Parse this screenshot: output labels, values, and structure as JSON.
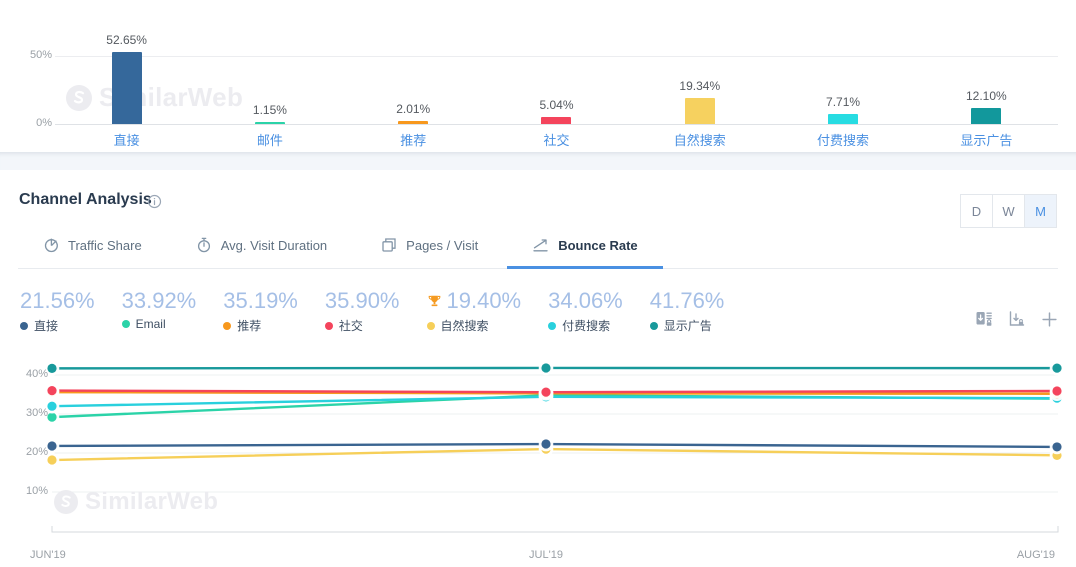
{
  "brand": {
    "watermark": "SimilarWeb"
  },
  "chart_data": [
    {
      "type": "bar",
      "title": "Traffic Share by Channel",
      "categories": [
        "直接",
        "邮件",
        "推荐",
        "社交",
        "自然搜索",
        "付费搜索",
        "显示广告"
      ],
      "keys": [
        "direct",
        "email",
        "referrals",
        "social",
        "organic-search",
        "paid-search",
        "display-ads"
      ],
      "values": [
        52.65,
        1.15,
        2.01,
        5.04,
        19.34,
        7.71,
        12.1
      ],
      "value_labels": [
        "52.65%",
        "1.15%",
        "2.01%",
        "5.04%",
        "19.34%",
        "7.71%",
        "12.10%"
      ],
      "colors": [
        "#35689b",
        "#2bd3a8",
        "#f7981d",
        "#f4445c",
        "#f6d15f",
        "#27dce2",
        "#12989c"
      ],
      "yticks": [
        {
          "label": "50%",
          "value": 50
        },
        {
          "label": "0%",
          "value": 0
        }
      ],
      "ylim": [
        0,
        50
      ],
      "grid": "single-line-at-50"
    },
    {
      "type": "line",
      "title": "Bounce Rate",
      "x": [
        "JUN'19",
        "JUL'19",
        "AUG'19"
      ],
      "yticks": [
        {
          "label": "40%",
          "value": 40
        },
        {
          "label": "30%",
          "value": 30
        },
        {
          "label": "20%",
          "value": 20
        },
        {
          "label": "10%",
          "value": 10
        }
      ],
      "ylim": [
        8,
        44
      ],
      "grid": "horizontal",
      "legend_position": "top",
      "series": [
        {
          "key": "email",
          "name": "Email",
          "color": "#2bd3a8",
          "values": [
            29.2,
            34.8,
            33.92
          ]
        },
        {
          "key": "paid-search",
          "name": "付费搜索",
          "color": "#29d0dd",
          "values": [
            32.0,
            34.4,
            34.06
          ]
        },
        {
          "key": "referrals",
          "name": "推荐",
          "color": "#f7981d",
          "values": [
            35.6,
            35.3,
            35.19
          ]
        },
        {
          "key": "social",
          "name": "社交",
          "color": "#f4445c",
          "values": [
            36.0,
            35.6,
            35.9
          ]
        },
        {
          "key": "organic-search",
          "name": "自然搜索",
          "color": "#f6cf59",
          "values": [
            18.2,
            21.0,
            19.4
          ]
        },
        {
          "key": "direct",
          "name": "直接",
          "color": "#3a6490",
          "values": [
            21.8,
            22.3,
            21.56
          ]
        },
        {
          "key": "display-ads",
          "name": "显示广告",
          "color": "#18999b",
          "values": [
            41.7,
            41.8,
            41.76
          ]
        }
      ]
    }
  ],
  "channel_analysis": {
    "title": "Channel Analysis",
    "granularity": {
      "options": [
        "D",
        "W",
        "M"
      ],
      "active": "M"
    },
    "tabs": [
      {
        "key": "traffic-share",
        "label": "Traffic Share",
        "icon": "pie-chart-icon",
        "active": false
      },
      {
        "key": "avg-visit-duration",
        "label": "Avg. Visit Duration",
        "icon": "stopwatch-icon",
        "active": false
      },
      {
        "key": "pages-visit",
        "label": "Pages / Visit",
        "icon": "pages-icon",
        "active": false
      },
      {
        "key": "bounce-rate",
        "label": "Bounce Rate",
        "icon": "bounce-chart-icon",
        "active": true
      }
    ],
    "legend": [
      {
        "key": "direct",
        "value": "21.56%",
        "label": "直接",
        "color": "#3a6490",
        "trophy": false
      },
      {
        "key": "email",
        "value": "33.92%",
        "label": "Email",
        "color": "#2bd3a8",
        "trophy": false
      },
      {
        "key": "referrals",
        "value": "35.19%",
        "label": "推荐",
        "color": "#f7981d",
        "trophy": false
      },
      {
        "key": "social",
        "value": "35.90%",
        "label": "社交",
        "color": "#f4445c",
        "trophy": false
      },
      {
        "key": "organic-search",
        "value": "19.40%",
        "label": "自然搜索",
        "color": "#f6cf59",
        "trophy": true
      },
      {
        "key": "paid-search",
        "value": "34.06%",
        "label": "付费搜索",
        "color": "#29d0dd",
        "trophy": false
      },
      {
        "key": "display-ads",
        "value": "41.76%",
        "label": "显示广告",
        "color": "#18999b",
        "trophy": false
      }
    ],
    "trophy_color": "#f59b22"
  }
}
